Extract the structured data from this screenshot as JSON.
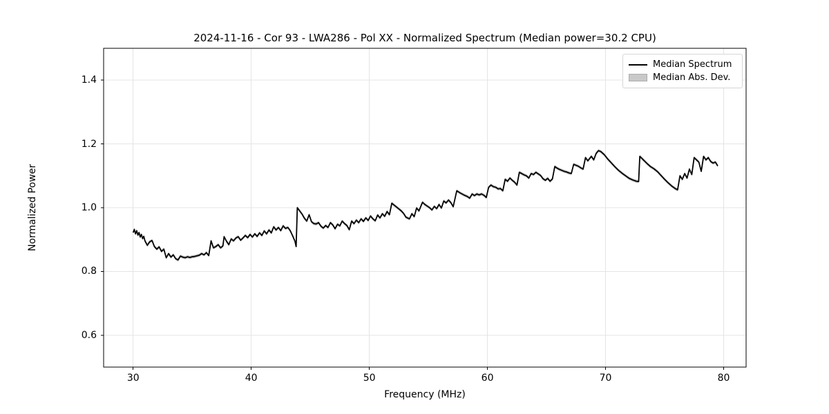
{
  "figure": {
    "kind": "matplotlib-line-figure",
    "background": "#ffffff"
  },
  "chart_data": {
    "type": "line",
    "title": "2024-11-16 - Cor 93 - LWA286 - Pol XX - Normalized Spectrum (Median power=30.2 CPU)",
    "xlabel": "Frequency (MHz)",
    "ylabel": "Normalized Power",
    "xlim": [
      27.5,
      81.9
    ],
    "ylim": [
      0.5,
      1.5
    ],
    "x_ticks": [
      30,
      40,
      50,
      60,
      70,
      80
    ],
    "y_ticks": [
      0.6,
      0.8,
      1.0,
      1.2,
      1.4
    ],
    "grid": true,
    "grid_color": "#e4e4e4",
    "spine_color": "#000000",
    "legend_position": "upper right",
    "legend": [
      {
        "label": "Median Spectrum",
        "type": "line",
        "color": "#000000"
      },
      {
        "label": "Median Abs. Dev.",
        "type": "patch",
        "color": "#c9c9c9"
      }
    ],
    "band": {
      "name": "Median Abs. Dev.",
      "color": "#c3c3c3",
      "half_width": 0.005
    },
    "series": [
      {
        "name": "Median Spectrum",
        "color": "#000000",
        "line_width": 1.8,
        "points": [
          [
            30.0,
            0.922
          ],
          [
            30.1,
            0.932
          ],
          [
            30.2,
            0.918
          ],
          [
            30.3,
            0.928
          ],
          [
            30.4,
            0.914
          ],
          [
            30.5,
            0.922
          ],
          [
            30.6,
            0.908
          ],
          [
            30.7,
            0.916
          ],
          [
            30.8,
            0.903
          ],
          [
            30.9,
            0.91
          ],
          [
            31.0,
            0.896
          ],
          [
            31.2,
            0.882
          ],
          [
            31.4,
            0.893
          ],
          [
            31.6,
            0.897
          ],
          [
            31.8,
            0.878
          ],
          [
            32.0,
            0.87
          ],
          [
            32.2,
            0.877
          ],
          [
            32.4,
            0.863
          ],
          [
            32.6,
            0.87
          ],
          [
            32.8,
            0.843
          ],
          [
            33.0,
            0.856
          ],
          [
            33.2,
            0.845
          ],
          [
            33.4,
            0.852
          ],
          [
            33.6,
            0.84
          ],
          [
            33.8,
            0.836
          ],
          [
            34.0,
            0.848
          ],
          [
            34.2,
            0.845
          ],
          [
            34.4,
            0.843
          ],
          [
            34.6,
            0.846
          ],
          [
            34.8,
            0.844
          ],
          [
            35.0,
            0.846
          ],
          [
            35.2,
            0.847
          ],
          [
            35.4,
            0.849
          ],
          [
            35.6,
            0.851
          ],
          [
            35.8,
            0.856
          ],
          [
            36.0,
            0.852
          ],
          [
            36.2,
            0.859
          ],
          [
            36.4,
            0.85
          ],
          [
            36.6,
            0.896
          ],
          [
            36.8,
            0.874
          ],
          [
            37.0,
            0.878
          ],
          [
            37.2,
            0.884
          ],
          [
            37.4,
            0.874
          ],
          [
            37.6,
            0.88
          ],
          [
            37.7,
            0.909
          ],
          [
            37.9,
            0.895
          ],
          [
            38.1,
            0.884
          ],
          [
            38.3,
            0.902
          ],
          [
            38.5,
            0.896
          ],
          [
            38.7,
            0.905
          ],
          [
            38.9,
            0.909
          ],
          [
            39.1,
            0.898
          ],
          [
            39.3,
            0.905
          ],
          [
            39.5,
            0.913
          ],
          [
            39.7,
            0.906
          ],
          [
            39.9,
            0.916
          ],
          [
            40.1,
            0.908
          ],
          [
            40.3,
            0.918
          ],
          [
            40.5,
            0.91
          ],
          [
            40.7,
            0.921
          ],
          [
            40.9,
            0.913
          ],
          [
            41.1,
            0.927
          ],
          [
            41.3,
            0.918
          ],
          [
            41.5,
            0.93
          ],
          [
            41.7,
            0.921
          ],
          [
            41.9,
            0.94
          ],
          [
            42.1,
            0.93
          ],
          [
            42.3,
            0.938
          ],
          [
            42.5,
            0.928
          ],
          [
            42.7,
            0.943
          ],
          [
            42.9,
            0.935
          ],
          [
            43.1,
            0.938
          ],
          [
            43.3,
            0.928
          ],
          [
            43.5,
            0.912
          ],
          [
            43.7,
            0.895
          ],
          [
            43.8,
            0.878
          ],
          [
            43.9,
            1.0
          ],
          [
            44.1,
            0.99
          ],
          [
            44.3,
            0.98
          ],
          [
            44.5,
            0.967
          ],
          [
            44.7,
            0.958
          ],
          [
            44.9,
            0.978
          ],
          [
            45.1,
            0.956
          ],
          [
            45.3,
            0.95
          ],
          [
            45.5,
            0.949
          ],
          [
            45.7,
            0.953
          ],
          [
            45.9,
            0.942
          ],
          [
            46.1,
            0.936
          ],
          [
            46.3,
            0.944
          ],
          [
            46.5,
            0.938
          ],
          [
            46.7,
            0.953
          ],
          [
            46.9,
            0.946
          ],
          [
            47.1,
            0.934
          ],
          [
            47.3,
            0.948
          ],
          [
            47.5,
            0.943
          ],
          [
            47.7,
            0.958
          ],
          [
            47.9,
            0.95
          ],
          [
            48.1,
            0.944
          ],
          [
            48.3,
            0.931
          ],
          [
            48.5,
            0.958
          ],
          [
            48.7,
            0.95
          ],
          [
            48.9,
            0.961
          ],
          [
            49.1,
            0.953
          ],
          [
            49.3,
            0.965
          ],
          [
            49.5,
            0.957
          ],
          [
            49.7,
            0.968
          ],
          [
            49.9,
            0.96
          ],
          [
            50.1,
            0.974
          ],
          [
            50.3,
            0.965
          ],
          [
            50.5,
            0.959
          ],
          [
            50.7,
            0.977
          ],
          [
            50.9,
            0.968
          ],
          [
            51.1,
            0.981
          ],
          [
            51.3,
            0.973
          ],
          [
            51.5,
            0.988
          ],
          [
            51.7,
            0.978
          ],
          [
            51.9,
            1.014
          ],
          [
            52.1,
            1.008
          ],
          [
            52.3,
            1.002
          ],
          [
            52.5,
            0.996
          ],
          [
            52.7,
            0.99
          ],
          [
            52.9,
            0.982
          ],
          [
            53.1,
            0.97
          ],
          [
            53.4,
            0.965
          ],
          [
            53.6,
            0.981
          ],
          [
            53.8,
            0.972
          ],
          [
            54.0,
            0.999
          ],
          [
            54.2,
            0.99
          ],
          [
            54.5,
            1.017
          ],
          [
            54.7,
            1.01
          ],
          [
            54.9,
            1.005
          ],
          [
            55.1,
            1.0
          ],
          [
            55.3,
            0.993
          ],
          [
            55.5,
            1.004
          ],
          [
            55.7,
            0.997
          ],
          [
            55.9,
            1.01
          ],
          [
            56.1,
            0.999
          ],
          [
            56.3,
            1.021
          ],
          [
            56.5,
            1.015
          ],
          [
            56.7,
            1.024
          ],
          [
            56.9,
            1.016
          ],
          [
            57.1,
            1.003
          ],
          [
            57.4,
            1.053
          ],
          [
            57.7,
            1.046
          ],
          [
            58.0,
            1.04
          ],
          [
            58.3,
            1.035
          ],
          [
            58.5,
            1.03
          ],
          [
            58.7,
            1.043
          ],
          [
            58.9,
            1.038
          ],
          [
            59.1,
            1.043
          ],
          [
            59.3,
            1.04
          ],
          [
            59.5,
            1.043
          ],
          [
            59.7,
            1.039
          ],
          [
            59.9,
            1.032
          ],
          [
            60.1,
            1.064
          ],
          [
            60.3,
            1.071
          ],
          [
            60.5,
            1.066
          ],
          [
            60.7,
            1.064
          ],
          [
            60.9,
            1.059
          ],
          [
            61.1,
            1.06
          ],
          [
            61.3,
            1.053
          ],
          [
            61.5,
            1.089
          ],
          [
            61.7,
            1.083
          ],
          [
            61.9,
            1.093
          ],
          [
            62.1,
            1.086
          ],
          [
            62.3,
            1.08
          ],
          [
            62.5,
            1.071
          ],
          [
            62.7,
            1.111
          ],
          [
            62.9,
            1.107
          ],
          [
            63.1,
            1.103
          ],
          [
            63.3,
            1.1
          ],
          [
            63.5,
            1.093
          ],
          [
            63.7,
            1.107
          ],
          [
            63.9,
            1.104
          ],
          [
            64.1,
            1.111
          ],
          [
            64.3,
            1.106
          ],
          [
            64.5,
            1.101
          ],
          [
            64.7,
            1.091
          ],
          [
            64.9,
            1.086
          ],
          [
            65.1,
            1.092
          ],
          [
            65.3,
            1.083
          ],
          [
            65.5,
            1.09
          ],
          [
            65.7,
            1.129
          ],
          [
            65.9,
            1.124
          ],
          [
            66.1,
            1.12
          ],
          [
            66.3,
            1.117
          ],
          [
            66.5,
            1.114
          ],
          [
            66.7,
            1.112
          ],
          [
            66.9,
            1.109
          ],
          [
            67.1,
            1.107
          ],
          [
            67.3,
            1.136
          ],
          [
            67.5,
            1.133
          ],
          [
            67.7,
            1.13
          ],
          [
            67.9,
            1.125
          ],
          [
            68.1,
            1.121
          ],
          [
            68.3,
            1.157
          ],
          [
            68.5,
            1.147
          ],
          [
            68.8,
            1.161
          ],
          [
            69.0,
            1.15
          ],
          [
            69.2,
            1.17
          ],
          [
            69.4,
            1.179
          ],
          [
            69.6,
            1.176
          ],
          [
            69.9,
            1.166
          ],
          [
            70.2,
            1.152
          ],
          [
            70.5,
            1.14
          ],
          [
            70.8,
            1.128
          ],
          [
            71.1,
            1.117
          ],
          [
            71.4,
            1.108
          ],
          [
            71.7,
            1.1
          ],
          [
            72.0,
            1.092
          ],
          [
            72.3,
            1.087
          ],
          [
            72.6,
            1.083
          ],
          [
            72.8,
            1.082
          ],
          [
            72.9,
            1.161
          ],
          [
            73.2,
            1.15
          ],
          [
            73.5,
            1.139
          ],
          [
            73.8,
            1.129
          ],
          [
            74.1,
            1.122
          ],
          [
            74.4,
            1.113
          ],
          [
            74.7,
            1.101
          ],
          [
            75.0,
            1.089
          ],
          [
            75.3,
            1.078
          ],
          [
            75.6,
            1.068
          ],
          [
            75.9,
            1.06
          ],
          [
            76.1,
            1.056
          ],
          [
            76.3,
            1.1
          ],
          [
            76.5,
            1.089
          ],
          [
            76.7,
            1.107
          ],
          [
            76.9,
            1.093
          ],
          [
            77.1,
            1.121
          ],
          [
            77.3,
            1.104
          ],
          [
            77.5,
            1.157
          ],
          [
            77.7,
            1.15
          ],
          [
            77.9,
            1.143
          ],
          [
            78.1,
            1.114
          ],
          [
            78.3,
            1.161
          ],
          [
            78.5,
            1.15
          ],
          [
            78.7,
            1.157
          ],
          [
            78.9,
            1.145
          ],
          [
            79.1,
            1.14
          ],
          [
            79.3,
            1.143
          ],
          [
            79.5,
            1.131
          ]
        ]
      }
    ]
  }
}
